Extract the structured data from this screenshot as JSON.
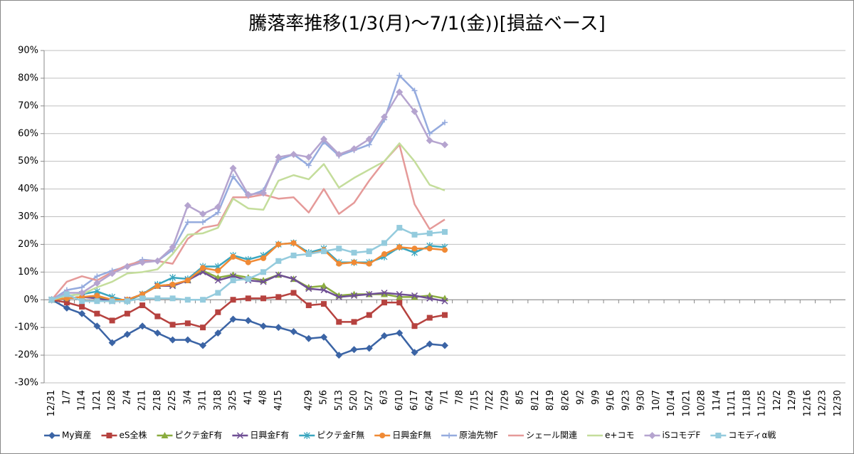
{
  "chart_data": {
    "type": "line",
    "title": "騰落率推移(1/3(月)～7/1(金))[損益ベース]",
    "categories": [
      "12/31",
      "1/7",
      "1/14",
      "1/21",
      "1/28",
      "2/4",
      "2/11",
      "2/18",
      "2/25",
      "3/4",
      "3/11",
      "3/18",
      "3/25",
      "4/1",
      "4/8",
      "4/15",
      null,
      "4/29",
      "5/6",
      "5/13",
      "5/20",
      "5/27",
      "6/3",
      "6/10",
      "6/17",
      "6/24",
      "7/1",
      "7/8",
      "7/15",
      "7/22",
      "7/29",
      "8/5",
      "8/12",
      "8/19",
      "8/26",
      "9/2",
      "9/9",
      "9/16",
      "9/23",
      "9/30",
      "10/7",
      "10/14",
      "10/21",
      "10/28",
      "11/4",
      "11/11",
      "11/18",
      "11/25",
      "12/2",
      "12/9",
      "12/16",
      "12/23",
      "12/30"
    ],
    "ylim": [
      -30,
      90
    ],
    "yticks": [
      {
        "value": -30,
        "label": "-30%"
      },
      {
        "value": -20,
        "label": "-20%"
      },
      {
        "value": -10,
        "label": "-10%"
      },
      {
        "value": 0,
        "label": "0%"
      },
      {
        "value": 10,
        "label": "10%"
      },
      {
        "value": 20,
        "label": "20%"
      },
      {
        "value": 30,
        "label": "30%"
      },
      {
        "value": 40,
        "label": "40%"
      },
      {
        "value": 50,
        "label": "50%"
      },
      {
        "value": 60,
        "label": "60%"
      },
      {
        "value": 70,
        "label": "70%"
      },
      {
        "value": 80,
        "label": "80%"
      },
      {
        "value": 90,
        "label": "90%"
      }
    ],
    "grid": true,
    "legend": "bottom",
    "series": [
      {
        "name": "My資産",
        "color": "#3b64a5",
        "marker": "diamond",
        "values": [
          0,
          -3,
          -5,
          -9.5,
          -15.5,
          -12.5,
          -9.5,
          -12,
          -14.5,
          -14.5,
          -16.5,
          -12,
          -7,
          -7.5,
          -9.5,
          -10,
          -11.5,
          -14,
          -13.5,
          -20,
          -18,
          -17.5,
          -13,
          -12,
          -19,
          -16,
          -16.5,
          null,
          null,
          null,
          null,
          null,
          null,
          null,
          null,
          null,
          null,
          null,
          null,
          null,
          null,
          null,
          null,
          null,
          null,
          null,
          null,
          null,
          null,
          null,
          null,
          null,
          null
        ]
      },
      {
        "name": "eS全株",
        "color": "#b6423f",
        "marker": "square",
        "values": [
          0,
          -1,
          -2.5,
          -5,
          -7.5,
          -5,
          -2,
          -6,
          -9,
          -8.5,
          -10,
          -4.5,
          0,
          0.5,
          0.5,
          1,
          2.5,
          -2,
          -1.5,
          -8,
          -8,
          -5.5,
          -1,
          -1,
          -9.5,
          -6.5,
          -5.5,
          null,
          null,
          null,
          null,
          null,
          null,
          null,
          null,
          null,
          null,
          null,
          null,
          null,
          null,
          null,
          null,
          null,
          null,
          null,
          null,
          null,
          null,
          null,
          null,
          null,
          null
        ]
      },
      {
        "name": "ピクテ金F有",
        "color": "#8aac3e",
        "marker": "triangle",
        "values": [
          0,
          0.5,
          1,
          1,
          0,
          0,
          2,
          5,
          5.5,
          7,
          10.5,
          8,
          9,
          8,
          7,
          9,
          7.5,
          4.5,
          5,
          1.5,
          2,
          2,
          2,
          1,
          1,
          1.5,
          0.5,
          null,
          null,
          null,
          null,
          null,
          null,
          null,
          null,
          null,
          null,
          null,
          null,
          null,
          null,
          null,
          null,
          null,
          null,
          null,
          null,
          null,
          null,
          null,
          null,
          null,
          null
        ]
      },
      {
        "name": "日興金F有",
        "color": "#6f4f94",
        "marker": "x",
        "values": [
          0,
          0.5,
          1,
          0.5,
          -0.5,
          0,
          2,
          5,
          5,
          7,
          10,
          7,
          8.5,
          7,
          6.5,
          9,
          7.5,
          4,
          3.5,
          1,
          1.5,
          2,
          2.5,
          2,
          1.5,
          0.5,
          -0.5,
          null,
          null,
          null,
          null,
          null,
          null,
          null,
          null,
          null,
          null,
          null,
          null,
          null,
          null,
          null,
          null,
          null,
          null,
          null,
          null,
          null,
          null,
          null,
          null,
          null,
          null
        ]
      },
      {
        "name": "ピクテ金F無",
        "color": "#3aa6bf",
        "marker": "star",
        "values": [
          0,
          1.5,
          2,
          3,
          1,
          -0.5,
          2,
          5.5,
          8,
          7.5,
          12,
          12,
          16,
          14.5,
          16,
          20,
          20.5,
          17,
          18.5,
          13.5,
          13.5,
          13.5,
          15.5,
          19,
          17,
          19.5,
          19,
          null,
          null,
          null,
          null,
          null,
          null,
          null,
          null,
          null,
          null,
          null,
          null,
          null,
          null,
          null,
          null,
          null,
          null,
          null,
          null,
          null,
          null,
          null,
          null,
          null,
          null
        ]
      },
      {
        "name": "日興金F無",
        "color": "#f08a35",
        "marker": "circle",
        "values": [
          0,
          0.5,
          1,
          1.5,
          0,
          0,
          2,
          5,
          5.5,
          7,
          11.5,
          10.5,
          15.5,
          13.5,
          15,
          20,
          20.5,
          16.5,
          18,
          13,
          13.5,
          13,
          16.5,
          19,
          18.5,
          18.5,
          18,
          null,
          null,
          null,
          null,
          null,
          null,
          null,
          null,
          null,
          null,
          null,
          null,
          null,
          null,
          null,
          null,
          null,
          null,
          null,
          null,
          null,
          null,
          null,
          null,
          null,
          null
        ]
      },
      {
        "name": "原油先物F",
        "color": "#95abde",
        "marker": "plus",
        "values": [
          0,
          3.5,
          4.5,
          8.5,
          10.5,
          12,
          14.5,
          14,
          18,
          28,
          28,
          31.5,
          44.5,
          37.5,
          39.5,
          50.5,
          52.5,
          48.5,
          57,
          52,
          54,
          56,
          65,
          81,
          75.5,
          60,
          64,
          null,
          null,
          null,
          null,
          null,
          null,
          null,
          null,
          null,
          null,
          null,
          null,
          null,
          null,
          null,
          null,
          null,
          null,
          null,
          null,
          null,
          null,
          null,
          null,
          null,
          null
        ]
      },
      {
        "name": "シェール関連",
        "color": "#e59a99",
        "marker": "none",
        "values": [
          0,
          6.5,
          8.5,
          7,
          10,
          12.5,
          14,
          14,
          13,
          22,
          26,
          27,
          37,
          37,
          38,
          36.5,
          37,
          31.5,
          40,
          31,
          35,
          43,
          50,
          56,
          34.5,
          25.5,
          29,
          null,
          null,
          null,
          null,
          null,
          null,
          null,
          null,
          null,
          null,
          null,
          null,
          null,
          null,
          null,
          null,
          null,
          null,
          null,
          null,
          null,
          null,
          null,
          null,
          null,
          null
        ]
      },
      {
        "name": "e+コモ",
        "color": "#c4dd9b",
        "marker": "none",
        "values": [
          0,
          1.5,
          2,
          4.5,
          6.5,
          9.5,
          10,
          11,
          16.5,
          23.5,
          24,
          26,
          36.5,
          33,
          32.5,
          43,
          45,
          43.5,
          49,
          40.5,
          44,
          47,
          50,
          56.5,
          50,
          41.5,
          39.5,
          null,
          null,
          null,
          null,
          null,
          null,
          null,
          null,
          null,
          null,
          null,
          null,
          null,
          null,
          null,
          null,
          null,
          null,
          null,
          null,
          null,
          null,
          null,
          null,
          null,
          null
        ]
      },
      {
        "name": "iSコモデF",
        "color": "#b5a4cf",
        "marker": "diamond",
        "values": [
          0,
          2.5,
          2.5,
          6,
          9.5,
          12,
          13.5,
          14,
          19,
          34,
          31,
          33.5,
          47.5,
          38,
          38.5,
          51.5,
          52.5,
          51.5,
          58,
          52.5,
          54.5,
          58,
          66,
          75,
          68,
          57.5,
          56,
          null,
          null,
          null,
          null,
          null,
          null,
          null,
          null,
          null,
          null,
          null,
          null,
          null,
          null,
          null,
          null,
          null,
          null,
          null,
          null,
          null,
          null,
          null,
          null,
          null,
          null
        ]
      },
      {
        "name": "コモディα戦",
        "color": "#94cbdd",
        "marker": "square",
        "values": [
          0,
          2,
          -0.5,
          -0.5,
          -0.5,
          -0.5,
          0.5,
          0.5,
          0.5,
          0,
          0,
          2.5,
          7,
          7.5,
          10,
          14,
          16,
          16.5,
          17.5,
          18.5,
          17,
          17.5,
          20.5,
          26,
          23.5,
          24,
          24.5,
          null,
          null,
          null,
          null,
          null,
          null,
          null,
          null,
          null,
          null,
          null,
          null,
          null,
          null,
          null,
          null,
          null,
          null,
          null,
          null,
          null,
          null,
          null,
          null,
          null,
          null
        ]
      }
    ]
  }
}
